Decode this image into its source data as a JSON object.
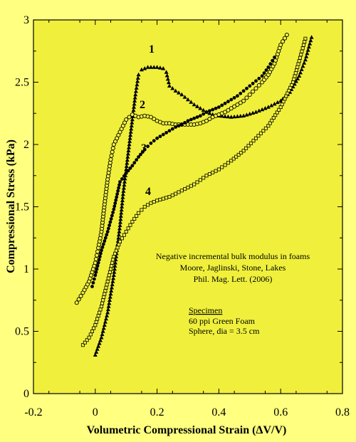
{
  "chart_data": {
    "type": "scatter",
    "xlabel": "Volumetric Compressional Strain (ΔV/V)",
    "ylabel": "Compressional Stress (kPa)",
    "xlim": [
      -0.2,
      0.8
    ],
    "ylim": [
      0,
      3
    ],
    "xticks": [
      "-0.2",
      "0",
      "0.2",
      "0.4",
      "0.6",
      "0.8"
    ],
    "yticks": [
      "0",
      "0.5",
      "1",
      "1.5",
      "2",
      "2.5",
      "3"
    ],
    "grid": false,
    "colors": {
      "background": "#ffff80",
      "plot_area": "#f0f03c",
      "ink": "#000000"
    },
    "series": [
      {
        "label": "1",
        "marker": "filled-triangle",
        "points": [
          [
            0,
            0.31
          ],
          [
            0.02,
            0.45
          ],
          [
            0.04,
            0.65
          ],
          [
            0.06,
            0.95
          ],
          [
            0.08,
            1.35
          ],
          [
            0.09,
            1.6
          ],
          [
            0.1,
            1.8
          ],
          [
            0.11,
            2.0
          ],
          [
            0.12,
            2.2
          ],
          [
            0.13,
            2.4
          ],
          [
            0.14,
            2.56
          ],
          [
            0.15,
            2.6
          ],
          [
            0.17,
            2.62
          ],
          [
            0.2,
            2.62
          ],
          [
            0.22,
            2.61
          ],
          [
            0.23,
            2.58
          ],
          [
            0.24,
            2.47
          ],
          [
            0.26,
            2.43
          ],
          [
            0.28,
            2.4
          ],
          [
            0.3,
            2.36
          ],
          [
            0.32,
            2.32
          ],
          [
            0.34,
            2.29
          ],
          [
            0.36,
            2.26
          ],
          [
            0.38,
            2.24
          ],
          [
            0.4,
            2.23
          ],
          [
            0.44,
            2.22
          ],
          [
            0.48,
            2.23
          ],
          [
            0.52,
            2.26
          ],
          [
            0.56,
            2.3
          ],
          [
            0.6,
            2.35
          ],
          [
            0.63,
            2.42
          ],
          [
            0.66,
            2.55
          ],
          [
            0.68,
            2.68
          ],
          [
            0.7,
            2.86
          ]
        ]
      },
      {
        "label": "2",
        "marker": "open-circle",
        "points": [
          [
            -0.06,
            0.73
          ],
          [
            -0.04,
            0.81
          ],
          [
            -0.02,
            0.9
          ],
          [
            0,
            1.05
          ],
          [
            0.01,
            1.17
          ],
          [
            0.02,
            1.3
          ],
          [
            0.03,
            1.52
          ],
          [
            0.04,
            1.72
          ],
          [
            0.05,
            1.88
          ],
          [
            0.06,
            2.0
          ],
          [
            0.08,
            2.1
          ],
          [
            0.1,
            2.2
          ],
          [
            0.12,
            2.24
          ],
          [
            0.14,
            2.22
          ],
          [
            0.16,
            2.23
          ],
          [
            0.18,
            2.22
          ],
          [
            0.2,
            2.19
          ],
          [
            0.22,
            2.17
          ],
          [
            0.24,
            2.17
          ],
          [
            0.26,
            2.16
          ],
          [
            0.28,
            2.16
          ],
          [
            0.3,
            2.16
          ],
          [
            0.32,
            2.16
          ],
          [
            0.34,
            2.17
          ],
          [
            0.36,
            2.19
          ],
          [
            0.38,
            2.22
          ],
          [
            0.4,
            2.24
          ],
          [
            0.42,
            2.26
          ],
          [
            0.44,
            2.29
          ],
          [
            0.46,
            2.32
          ],
          [
            0.48,
            2.35
          ],
          [
            0.5,
            2.4
          ],
          [
            0.52,
            2.45
          ],
          [
            0.54,
            2.5
          ],
          [
            0.56,
            2.56
          ],
          [
            0.58,
            2.65
          ],
          [
            0.6,
            2.8
          ],
          [
            0.62,
            2.88
          ]
        ]
      },
      {
        "label": "3",
        "marker": "filled-circle",
        "points": [
          [
            -0.01,
            0.86
          ],
          [
            0,
            0.95
          ],
          [
            0.01,
            1.05
          ],
          [
            0.02,
            1.15
          ],
          [
            0.04,
            1.3
          ],
          [
            0.06,
            1.48
          ],
          [
            0.08,
            1.7
          ],
          [
            0.1,
            1.77
          ],
          [
            0.12,
            1.83
          ],
          [
            0.14,
            1.9
          ],
          [
            0.16,
            1.96
          ],
          [
            0.18,
            2.01
          ],
          [
            0.2,
            2.05
          ],
          [
            0.22,
            2.08
          ],
          [
            0.24,
            2.11
          ],
          [
            0.26,
            2.14
          ],
          [
            0.28,
            2.16
          ],
          [
            0.3,
            2.19
          ],
          [
            0.32,
            2.21
          ],
          [
            0.34,
            2.23
          ],
          [
            0.36,
            2.26
          ],
          [
            0.38,
            2.28
          ],
          [
            0.4,
            2.3
          ],
          [
            0.42,
            2.33
          ],
          [
            0.44,
            2.36
          ],
          [
            0.46,
            2.39
          ],
          [
            0.48,
            2.43
          ],
          [
            0.5,
            2.47
          ],
          [
            0.52,
            2.51
          ],
          [
            0.54,
            2.55
          ],
          [
            0.56,
            2.62
          ],
          [
            0.58,
            2.7
          ]
        ]
      },
      {
        "label": "4",
        "marker": "open-square",
        "points": [
          [
            -0.04,
            0.39
          ],
          [
            -0.02,
            0.45
          ],
          [
            0,
            0.55
          ],
          [
            0.02,
            0.7
          ],
          [
            0.04,
            0.9
          ],
          [
            0.06,
            1.1
          ],
          [
            0.08,
            1.22
          ],
          [
            0.1,
            1.3
          ],
          [
            0.12,
            1.38
          ],
          [
            0.14,
            1.45
          ],
          [
            0.16,
            1.5
          ],
          [
            0.18,
            1.53
          ],
          [
            0.2,
            1.55
          ],
          [
            0.24,
            1.58
          ],
          [
            0.28,
            1.63
          ],
          [
            0.32,
            1.68
          ],
          [
            0.36,
            1.75
          ],
          [
            0.4,
            1.8
          ],
          [
            0.44,
            1.87
          ],
          [
            0.48,
            1.95
          ],
          [
            0.52,
            2.05
          ],
          [
            0.56,
            2.15
          ],
          [
            0.6,
            2.3
          ],
          [
            0.64,
            2.5
          ],
          [
            0.66,
            2.67
          ],
          [
            0.68,
            2.85
          ]
        ]
      }
    ],
    "annotations": {
      "citation": [
        "Negative incremental  bulk modulus in foams",
        "Moore, Jaglinski, Stone, Lakes",
        "Phil. Mag. Lett. (2006)"
      ],
      "specimen_heading": "Specimen",
      "specimen_lines": [
        "60 ppi Green Foam",
        "Sphere, dia = 3.5 cm"
      ]
    }
  }
}
